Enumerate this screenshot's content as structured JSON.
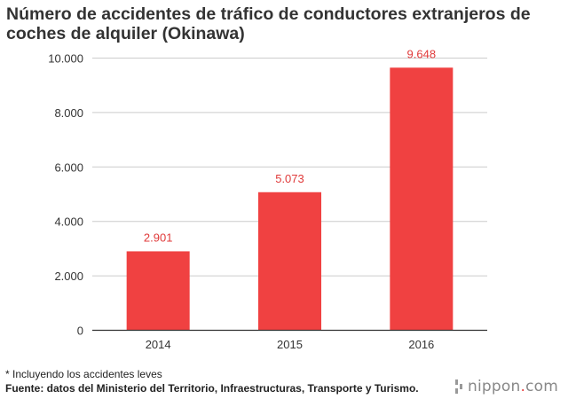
{
  "title": "Número de accidentes de tráfico de conductores extranjeros de coches de alquiler (Okinawa)",
  "footnote": "* Incluyendo los accidentes leves",
  "source": "Fuente: datos del Ministerio del Territorio, Infraestructuras, Transporte y Turismo.",
  "logo": {
    "name": "nippon",
    "dot": ".",
    "tld": "com",
    "icon": "nippon-mark-icon"
  },
  "colors": {
    "bar": "#f04141",
    "label": "#e03a3a",
    "axis": "#333333",
    "grid": "#cccccc",
    "text": "#333333"
  },
  "chart_data": {
    "type": "bar",
    "categories": [
      "2014",
      "2015",
      "2016"
    ],
    "values": [
      2901,
      5073,
      9648
    ],
    "value_labels": [
      "2.901",
      "5.073",
      "9.648"
    ],
    "y_ticks": [
      0,
      2000,
      4000,
      6000,
      8000,
      10000
    ],
    "y_tick_labels": [
      "0",
      "2.000",
      "4.000",
      "6.000",
      "8.000",
      "10.000"
    ],
    "ylim": [
      0,
      10000
    ],
    "grid": true,
    "legend": false
  }
}
